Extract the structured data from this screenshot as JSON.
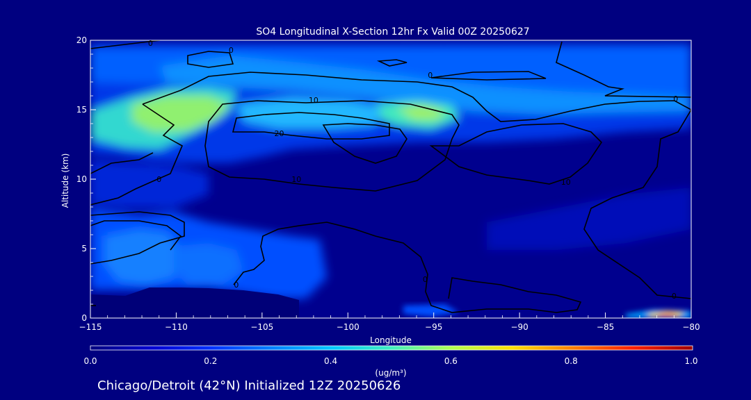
{
  "chart_data": {
    "type": "heatmap",
    "title": "SO4 Longitudinal X-Section 12hr  Fx Valid 00Z 20250627",
    "xlabel": "Longitude",
    "ylabel": "Altitude (km)",
    "xlim": [
      -115,
      -80
    ],
    "ylim": [
      0,
      20
    ],
    "x_ticks": [
      -115,
      -110,
      -105,
      -100,
      -95,
      -90,
      -85,
      -80
    ],
    "x_tick_labels": [
      "−115",
      "−110",
      "−105",
      "−100",
      "−95",
      "−90",
      "−85",
      "−80"
    ],
    "y_ticks": [
      0,
      5,
      10,
      15,
      20
    ],
    "y_tick_labels": [
      "0",
      "5",
      "10",
      "15",
      "20"
    ],
    "colorbar": {
      "min": 0.0,
      "max": 1.0,
      "ticks": [
        "0.0",
        "0.2",
        "0.4",
        "0.6",
        "0.8",
        "1.0"
      ],
      "units": "(ug/m³)",
      "colors": [
        "#000080",
        "#0000d0",
        "#0040ff",
        "#00a0ff",
        "#30e0d0",
        "#a0ff60",
        "#ffe000",
        "#ff8000",
        "#ff2000",
        "#a00000"
      ]
    },
    "contour_labels": [
      {
        "text": "0",
        "lon": -111.5,
        "alt": 20.0
      },
      {
        "text": "0",
        "lon": -106.8,
        "alt": 19.3
      },
      {
        "text": "0",
        "lon": -95.2,
        "alt": 17.5
      },
      {
        "text": "0",
        "lon": -80.9,
        "alt": 15.8
      },
      {
        "text": "10",
        "lon": -102.0,
        "alt": 15.7
      },
      {
        "text": "20",
        "lon": -104.0,
        "alt": 13.3
      },
      {
        "text": "0",
        "lon": -111.0,
        "alt": 10.0
      },
      {
        "text": "10",
        "lon": -103.0,
        "alt": 10.0
      },
      {
        "text": "10",
        "lon": -87.3,
        "alt": 9.8
      },
      {
        "text": "0",
        "lon": -106.5,
        "alt": 2.4
      },
      {
        "text": "0",
        "lon": -95.5,
        "alt": 2.8
      },
      {
        "text": "0",
        "lon": -81.0,
        "alt": 1.6
      }
    ]
  },
  "footer_text": "Chicago/Detroit (42°N) Initialized 12Z 20250626"
}
